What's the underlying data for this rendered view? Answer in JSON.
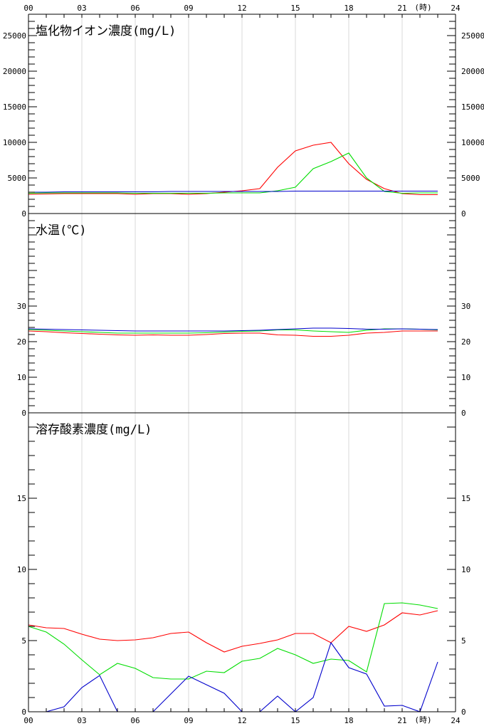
{
  "x_axis": {
    "ticks": [
      "00",
      "03",
      "06",
      "09",
      "12",
      "15",
      "18",
      "21",
      "24"
    ],
    "unit": "(時)"
  },
  "chart_data": [
    {
      "type": "line",
      "title": "塩化物イオン濃度(mg/L)",
      "ylim": [
        0,
        28000
      ],
      "yticks": [
        "0",
        "5000",
        "10000",
        "15000",
        "20000",
        "25000"
      ],
      "xlim": [
        0,
        24
      ],
      "x": [
        0,
        1,
        2,
        3,
        4,
        5,
        6,
        7,
        8,
        9,
        10,
        11,
        12,
        13,
        14,
        15,
        16,
        17,
        18,
        19,
        20,
        21,
        22,
        23
      ],
      "series": [
        {
          "color": "#ff0000",
          "values": [
            2700,
            2750,
            2800,
            2800,
            2800,
            2800,
            2700,
            2800,
            2800,
            2700,
            2800,
            3000,
            3200,
            3500,
            6500,
            8800,
            9600,
            10000,
            7000,
            4800,
            3500,
            2800,
            2650,
            2650
          ]
        },
        {
          "color": "#00dd00",
          "values": [
            2850,
            2900,
            2900,
            2900,
            2900,
            2900,
            2850,
            2850,
            2850,
            2850,
            2850,
            2900,
            2900,
            2900,
            3200,
            3700,
            6300,
            7300,
            8500,
            5000,
            3100,
            2850,
            2900,
            2900
          ]
        },
        {
          "color": "#0000cc",
          "values": [
            3000,
            3000,
            3050,
            3050,
            3050,
            3050,
            3050,
            3050,
            3100,
            3100,
            3100,
            3100,
            3100,
            3100,
            3100,
            3150,
            3150,
            3150,
            3150,
            3150,
            3150,
            3150,
            3150,
            3150
          ]
        }
      ]
    },
    {
      "type": "line",
      "title": "水温(℃)",
      "ylim": [
        0,
        56
      ],
      "yticks": [
        "0",
        "10",
        "20",
        "30"
      ],
      "xlim": [
        0,
        24
      ],
      "x": [
        0,
        1,
        2,
        3,
        4,
        5,
        6,
        7,
        8,
        9,
        10,
        11,
        12,
        13,
        14,
        15,
        16,
        17,
        18,
        19,
        20,
        21,
        22,
        23
      ],
      "series": [
        {
          "color": "#ff0000",
          "values": [
            23.0,
            22.8,
            22.5,
            22.3,
            22.1,
            21.9,
            21.8,
            21.9,
            21.8,
            21.8,
            22.0,
            22.3,
            22.4,
            22.4,
            21.9,
            21.8,
            21.5,
            21.5,
            21.8,
            22.4,
            22.6,
            23.0,
            23.0,
            23.0
          ]
        },
        {
          "color": "#00dd00",
          "values": [
            23.4,
            23.2,
            23.0,
            22.8,
            22.6,
            22.4,
            22.4,
            22.4,
            22.4,
            22.4,
            22.5,
            22.7,
            22.9,
            23.0,
            23.3,
            23.3,
            23.0,
            22.8,
            22.6,
            23.2,
            23.6,
            23.6,
            23.5,
            23.3
          ]
        },
        {
          "color": "#0000cc",
          "values": [
            23.6,
            23.5,
            23.4,
            23.3,
            23.2,
            23.1,
            23.0,
            23.0,
            23.0,
            23.0,
            23.0,
            23.0,
            23.1,
            23.2,
            23.4,
            23.6,
            23.8,
            23.8,
            23.7,
            23.5,
            23.5,
            23.6,
            23.5,
            23.4
          ]
        }
      ]
    },
    {
      "type": "line",
      "title": "溶存酸素濃度(mg/L)",
      "ylim": [
        0,
        21
      ],
      "yticks": [
        "0",
        "5",
        "10",
        "15"
      ],
      "xlim": [
        0,
        24
      ],
      "x": [
        0,
        1,
        2,
        3,
        4,
        5,
        6,
        7,
        8,
        9,
        10,
        11,
        12,
        13,
        14,
        15,
        16,
        17,
        18,
        19,
        20,
        21,
        22,
        23
      ],
      "series": [
        {
          "color": "#ff0000",
          "values": [
            6.1,
            5.9,
            5.85,
            5.45,
            5.1,
            5.0,
            5.05,
            5.2,
            5.5,
            5.6,
            4.85,
            4.2,
            4.6,
            4.8,
            5.05,
            5.5,
            5.5,
            4.85,
            6.0,
            5.65,
            6.1,
            6.95,
            6.8,
            7.1
          ]
        },
        {
          "color": "#00dd00",
          "values": [
            6.0,
            5.6,
            4.75,
            3.65,
            2.6,
            3.4,
            3.05,
            2.4,
            2.3,
            2.3,
            2.85,
            2.75,
            3.55,
            3.75,
            4.45,
            4.0,
            3.4,
            3.7,
            3.6,
            2.8,
            7.6,
            7.65,
            7.5,
            7.25
          ]
        },
        {
          "color": "#0000cc",
          "values": [
            0,
            0,
            0.35,
            1.7,
            2.55,
            0,
            0,
            0,
            1.25,
            2.5,
            1.9,
            1.3,
            0,
            0,
            1.1,
            0,
            1.0,
            4.85,
            3.1,
            2.65,
            0.4,
            0.45,
            0,
            3.5
          ]
        }
      ]
    }
  ]
}
